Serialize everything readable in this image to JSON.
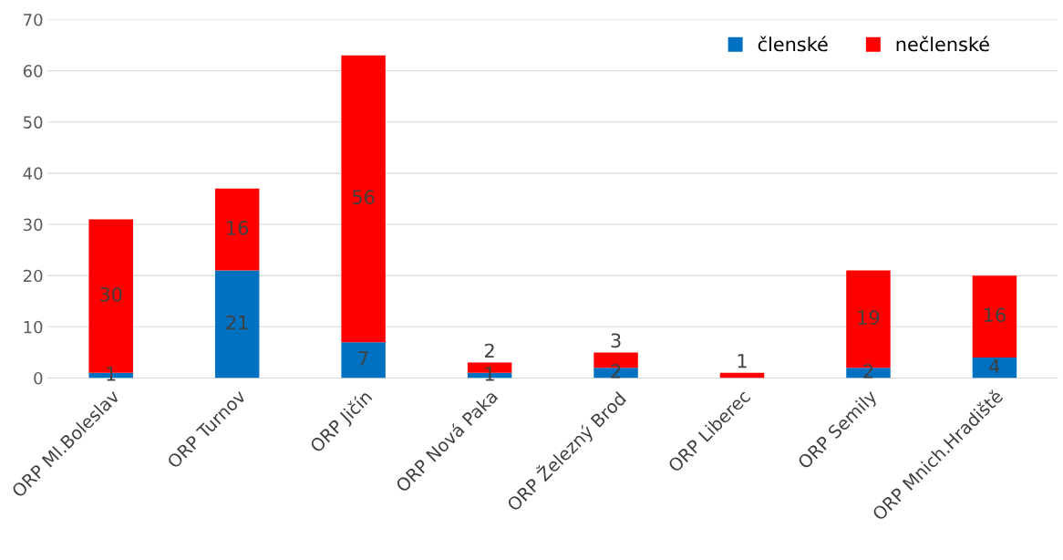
{
  "chart_data": {
    "type": "bar",
    "stacked": true,
    "categories": [
      "ORP Ml.Boleslav",
      "ORP Turnov",
      "ORP Jičín",
      "ORP Nová Paka",
      "ORP Železný Brod",
      "ORP Liberec",
      "ORP Semily",
      "ORP Mnich.Hradiště"
    ],
    "series": [
      {
        "name": "členské",
        "color": "#0070c0",
        "values": [
          1,
          21,
          7,
          1,
          2,
          0,
          2,
          4
        ],
        "value_labels": [
          "1",
          "21",
          "7",
          "1",
          "2",
          null,
          "2",
          "4"
        ]
      },
      {
        "name": "nečlenské",
        "color": "#ff0000",
        "values": [
          30,
          16,
          56,
          2,
          3,
          1,
          19,
          16
        ],
        "value_labels": [
          "30",
          "16",
          "56",
          "2",
          "3",
          "1",
          "19",
          "16"
        ]
      }
    ],
    "ylim": [
      0,
      70
    ],
    "yticks": [
      0,
      10,
      20,
      30,
      40,
      50,
      60,
      70
    ],
    "grid": "y",
    "legend": "top right"
  }
}
